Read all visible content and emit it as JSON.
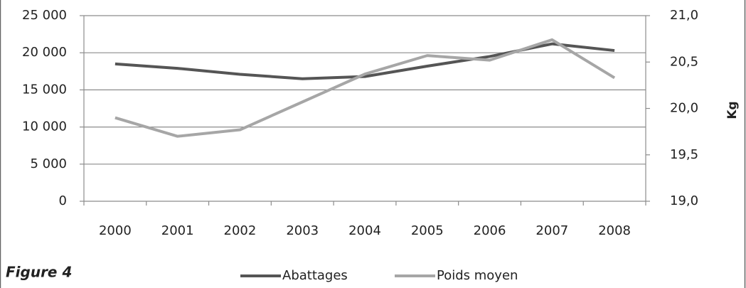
{
  "chart_data": {
    "type": "line",
    "figure_label": "Figure 4",
    "y2_label": "Kg",
    "categories": [
      "2000",
      "2001",
      "2002",
      "2003",
      "2004",
      "2005",
      "2006",
      "2007",
      "2008"
    ],
    "series": [
      {
        "name": "Abattages",
        "color": "#555555",
        "values": [
          18500,
          17900,
          17100,
          16500,
          16800,
          18200,
          19500,
          21200,
          20300
        ]
      },
      {
        "name": "Poids moyen",
        "color": "#a6a6a6",
        "axis": "y2",
        "values": [
          19.9,
          19.7,
          19.77,
          20.07,
          20.37,
          20.57,
          20.52,
          20.74,
          20.33
        ]
      }
    ],
    "ylim": [
      0,
      25000
    ],
    "yticks": [
      0,
      {
        "value": 5000,
        "label": "5 000"
      },
      {
        "value": 10000,
        "label": "10 000"
      },
      {
        "value": 15000,
        "label": "15 000"
      },
      {
        "value": 20000,
        "label": "20 000"
      },
      {
        "value": 25000,
        "label": "25 000"
      }
    ],
    "y2lim": [
      19,
      21
    ],
    "y2ticks": [
      {
        "value": 19,
        "label": "19,0"
      },
      {
        "value": 19.5,
        "label": "19,5"
      },
      {
        "value": 20,
        "label": "20,0"
      },
      {
        "value": 20.5,
        "label": "20,5"
      },
      {
        "value": 21,
        "label": "21,0"
      }
    ],
    "grid": true,
    "legend": "bottom"
  }
}
